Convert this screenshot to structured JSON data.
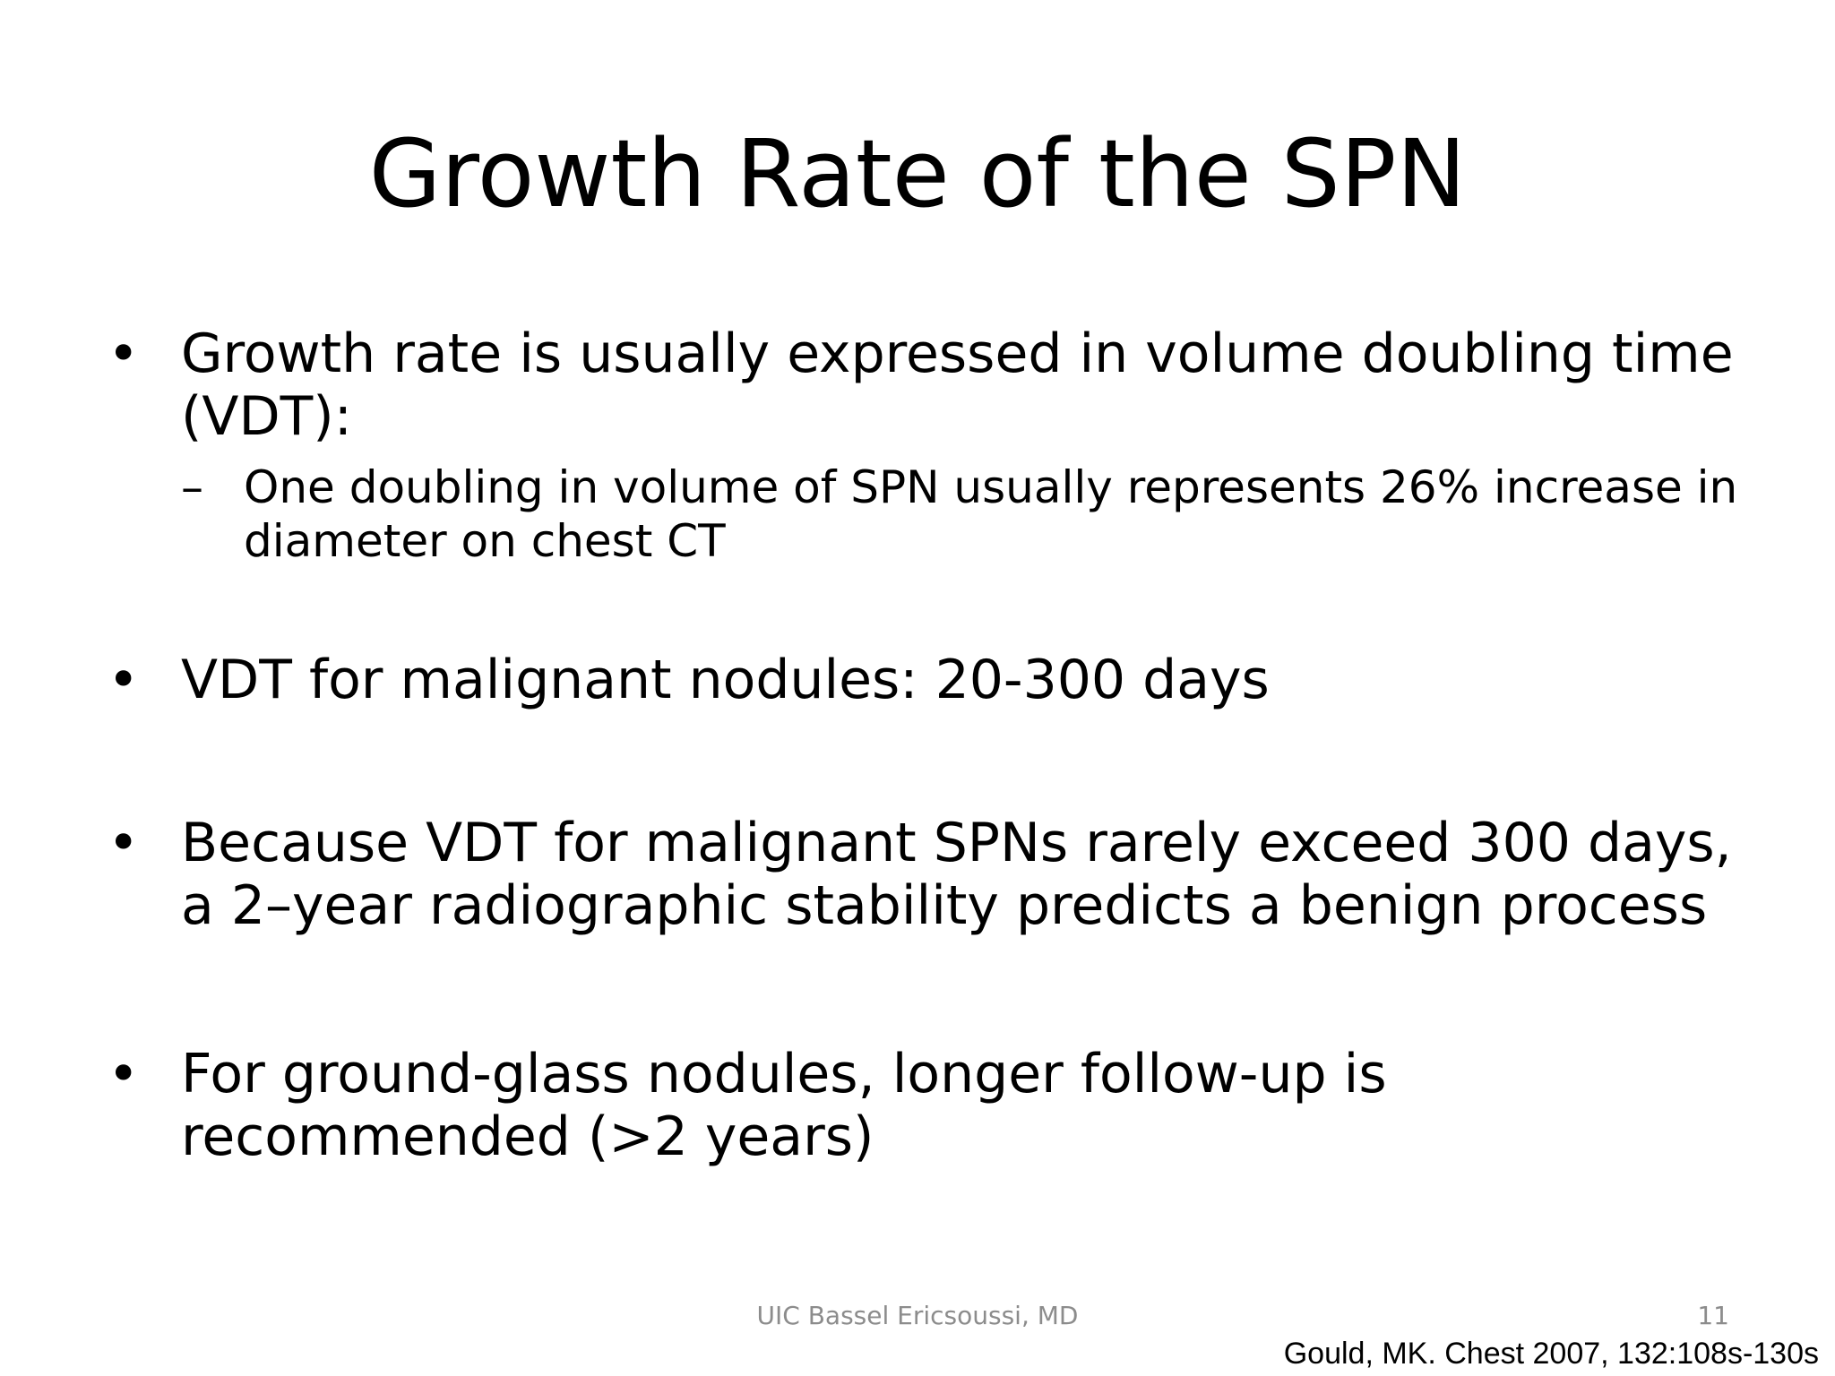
{
  "slide": {
    "title": "Growth Rate of the SPN",
    "bullets": [
      {
        "marker": "•",
        "text": "Growth rate is usually expressed in volume doubling time (VDT):",
        "sub": {
          "marker": "–",
          "text": "One doubling in volume of SPN usually represents 26% increase in diameter on chest CT"
        }
      },
      {
        "marker": "•",
        "text": "VDT for malignant nodules: 20-300 days"
      },
      {
        "marker": "•",
        "text": "Because VDT for malignant SPNs rarely exceed 300 days, a 2–year radiographic stability predicts a benign process"
      },
      {
        "marker": "•",
        "text": "For ground-glass nodules, longer follow-up is recommended (>2 years)"
      }
    ],
    "footer": "UIC   Bassel Ericsoussi, MD",
    "slide_number": "11",
    "citation": "Gould, MK. Chest 2007, 132:108s-130s"
  }
}
